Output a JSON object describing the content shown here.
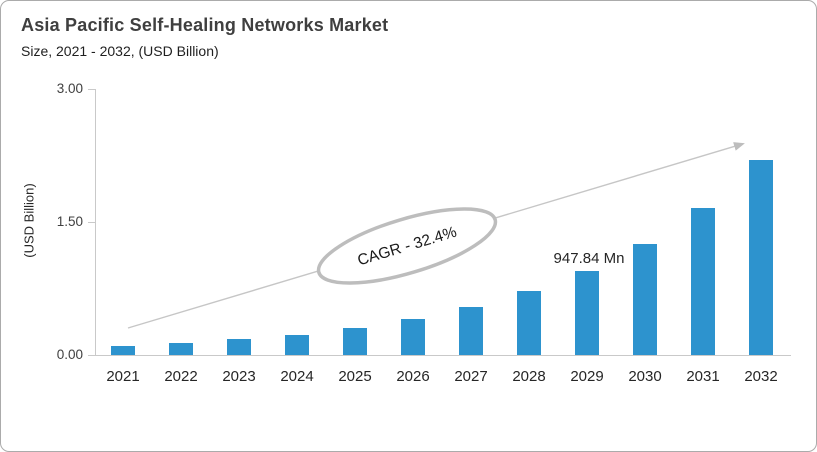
{
  "header": {
    "title": "Asia Pacific Self-Healing Networks Market",
    "subtitle": "Size, 2021 - 2032, (USD Billion)"
  },
  "chart_data": {
    "type": "bar",
    "title": "Asia Pacific Self-Healing Networks Market",
    "subtitle": "Size, 2021 - 2032, (USD Billion)",
    "categories": [
      "2021",
      "2022",
      "2023",
      "2024",
      "2025",
      "2026",
      "2027",
      "2028",
      "2029",
      "2030",
      "2031",
      "2032"
    ],
    "values": [
      0.1,
      0.13,
      0.18,
      0.23,
      0.31,
      0.41,
      0.54,
      0.72,
      0.948,
      1.25,
      1.66,
      2.2
    ],
    "unit": "USD Billion",
    "ylabel": "(USD Billion)",
    "ylim": [
      0,
      3
    ],
    "yticks": [
      {
        "value": 0.0,
        "label": "0.00"
      },
      {
        "value": 1.5,
        "label": "1.50"
      },
      {
        "value": 3.0,
        "label": "3.00"
      }
    ],
    "grid": false,
    "legend": "none",
    "annotations": {
      "bar_value_label": {
        "text": "947.84 Mn",
        "category": "2029"
      },
      "cagr_label": "CAGR - 32.4%"
    },
    "colors": {
      "bar": "#2D93CE",
      "axis": "#C9C9C9",
      "trend_line": "#C6C6C6",
      "arrowhead": "#BDBDBD",
      "ellipse_stroke": "#BDBDBD",
      "ellipse_fill": "#FFFFFF",
      "title_text": "#3F3F3F",
      "body_text": "#262626"
    }
  }
}
